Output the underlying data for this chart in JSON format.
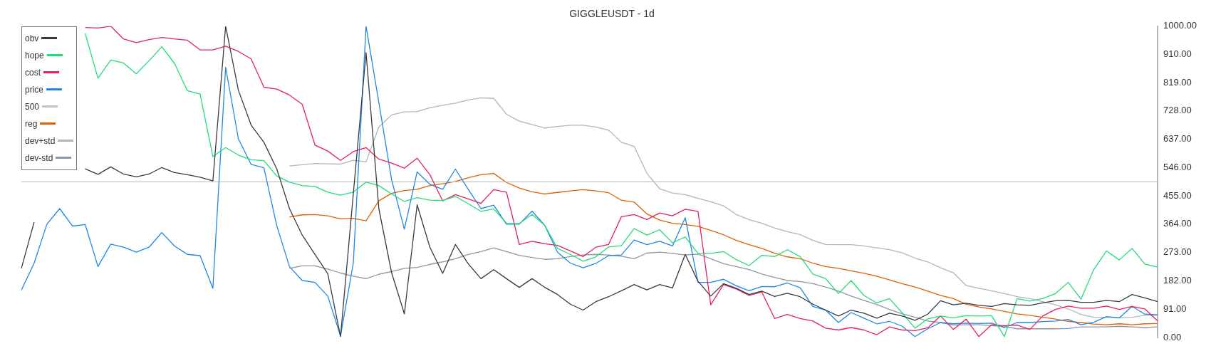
{
  "chart_data": {
    "type": "line",
    "title": "GIGGLEUSDT - 1d",
    "categories": [
      null,
      null,
      null,
      null,
      null,
      null,
      null,
      null,
      null,
      null,
      null,
      null,
      null,
      null,
      null,
      null,
      null,
      null,
      null,
      null,
      null,
      null,
      null,
      null,
      null,
      null,
      null,
      null,
      null,
      null,
      null,
      null,
      null,
      null,
      null,
      null,
      null,
      null,
      null,
      null,
      null,
      null,
      null,
      null,
      null,
      null,
      null,
      null,
      null,
      null,
      null,
      null,
      null,
      null,
      null,
      null,
      null,
      null,
      null,
      null,
      null,
      null,
      null,
      null,
      null,
      null,
      null,
      null,
      null,
      null,
      null,
      null,
      null,
      null,
      null,
      null,
      null,
      null,
      null,
      null,
      null,
      null,
      null,
      null,
      null,
      null,
      null,
      null,
      null,
      null
    ],
    "ylim": [
      0,
      1000
    ],
    "yticks": [
      {
        "value": 0,
        "label": "0.00"
      },
      {
        "value": 91,
        "label": "91.00"
      },
      {
        "value": 182,
        "label": "182.00"
      },
      {
        "value": 273,
        "label": "273.00"
      },
      {
        "value": 364,
        "label": "364.00"
      },
      {
        "value": 455,
        "label": "455.00"
      },
      {
        "value": 546,
        "label": "546.00"
      },
      {
        "value": 637,
        "label": "637.00"
      },
      {
        "value": 728,
        "label": "728.00"
      },
      {
        "value": 819,
        "label": "819.00"
      },
      {
        "value": 910,
        "label": "910.00"
      },
      {
        "value": 1000,
        "label": "1000.00"
      }
    ],
    "tick_labels": "y",
    "legend": "top left",
    "series": [
      {
        "name": "obv",
        "color": "#363a45",
        "values": [
          222,
          371,
          null,
          null,
          null,
          542,
          524,
          548,
          525,
          516,
          525,
          546,
          530,
          523,
          515,
          503,
          1000,
          794,
          682,
          627,
          542,
          414,
          329,
          267,
          205,
          3,
          461,
          915,
          414,
          208,
          76,
          426,
          290,
          206,
          299,
          237,
          189,
          218,
          189,
          161,
          189,
          161,
          138,
          107,
          88,
          115,
          131,
          150,
          170,
          153,
          170,
          159,
          267,
          181,
          133,
          173,
          158,
          138,
          149,
          132,
          142,
          131,
          107,
          88,
          69,
          88,
          78,
          62,
          78,
          69,
          55,
          75,
          118,
          105,
          110,
          103,
          100,
          109,
          105,
          103,
          111,
          118,
          119,
          113,
          113,
          119,
          115,
          138,
          127,
          115
        ]
      },
      {
        "name": "hope",
        "color": "#22dd77",
        "values": [
          null,
          null,
          null,
          null,
          null,
          977,
          833,
          891,
          882,
          847,
          889,
          934,
          880,
          793,
          782,
          581,
          610,
          586,
          571,
          568,
          519,
          499,
          488,
          485,
          467,
          457,
          467,
          499,
          488,
          461,
          437,
          449,
          441,
          440,
          453,
          430,
          405,
          413,
          367,
          366,
          395,
          360,
          286,
          267,
          245,
          259,
          291,
          295,
          350,
          329,
          346,
          304,
          323,
          270,
          270,
          276,
          250,
          231,
          264,
          260,
          282,
          260,
          204,
          189,
          141,
          183,
          135,
          111,
          125,
          79,
          30,
          60,
          69,
          63,
          70,
          69,
          70,
          3,
          125,
          117,
          125,
          141,
          177,
          123,
          218,
          278,
          249,
          286,
          236,
          226
        ]
      },
      {
        "name": "cost",
        "color": "#e91e63",
        "values": [
          null,
          null,
          null,
          null,
          null,
          996,
          994,
          1000,
          959,
          947,
          957,
          964,
          959,
          955,
          924,
          924,
          936,
          919,
          895,
          804,
          798,
          779,
          749,
          618,
          599,
          569,
          597,
          610,
          573,
          560,
          544,
          576,
          523,
          439,
          459,
          445,
          431,
          475,
          467,
          299,
          309,
          301,
          296,
          278,
          260,
          290,
          299,
          388,
          395,
          379,
          400,
          391,
          412,
          405,
          105,
          170,
          156,
          135,
          146,
          61,
          74,
          61,
          53,
          30,
          24,
          32,
          24,
          9,
          34,
          24,
          22,
          31,
          69,
          26,
          59,
          3,
          41,
          38,
          40,
          26,
          69,
          90,
          101,
          94,
          94,
          101,
          90,
          100,
          92,
          53
        ]
      },
      {
        "name": "price",
        "color": "#1e88e5",
        "values": [
          152,
          239,
          364,
          414,
          358,
          363,
          228,
          300,
          290,
          274,
          290,
          337,
          294,
          267,
          263,
          158,
          868,
          638,
          556,
          545,
          360,
          228,
          183,
          177,
          133,
          5,
          239,
          1000,
          755,
          507,
          348,
          532,
          492,
          476,
          541,
          476,
          414,
          425,
          364,
          364,
          406,
          360,
          274,
          239,
          224,
          238,
          263,
          265,
          313,
          298,
          309,
          294,
          385,
          177,
          177,
          187,
          166,
          150,
          164,
          163,
          175,
          160,
          100,
          88,
          48,
          80,
          62,
          44,
          52,
          36,
          3,
          28,
          48,
          44,
          46,
          45,
          46,
          32,
          48,
          48,
          51,
          53,
          58,
          41,
          49,
          67,
          63,
          100,
          75,
          73
        ]
      },
      {
        "name": "500",
        "color": "#c3c3c3",
        "values": [
          500,
          500,
          500,
          500,
          500,
          500,
          500,
          500,
          500,
          500,
          500,
          500,
          500,
          500,
          500,
          500,
          500,
          500,
          500,
          500,
          500,
          500,
          500,
          500,
          500,
          500,
          500,
          500,
          500,
          500,
          500,
          500,
          500,
          500,
          500,
          500,
          500,
          500,
          500,
          500,
          500,
          500,
          500,
          500,
          500,
          500,
          500,
          500,
          500,
          500,
          500,
          500,
          500,
          500,
          500,
          500,
          500,
          500,
          500,
          500,
          500,
          500,
          500,
          500,
          500,
          500,
          500,
          500,
          500,
          500,
          500,
          500,
          500,
          500,
          500,
          500,
          500,
          500,
          500,
          500,
          500,
          500,
          500,
          500,
          500,
          500,
          500,
          500,
          500,
          500
        ]
      },
      {
        "name": "reg",
        "color": "#e05f00",
        "values": [
          null,
          null,
          null,
          null,
          null,
          null,
          null,
          null,
          null,
          null,
          null,
          null,
          null,
          null,
          null,
          null,
          null,
          null,
          null,
          null,
          null,
          387,
          394,
          395,
          391,
          381,
          383,
          375,
          439,
          463,
          472,
          476,
          488,
          494,
          501,
          513,
          523,
          527,
          498,
          480,
          468,
          461,
          466,
          471,
          475,
          471,
          465,
          441,
          435,
          397,
          377,
          367,
          363,
          357,
          344,
          330,
          312,
          298,
          286,
          271,
          259,
          253,
          239,
          228,
          222,
          214,
          206,
          197,
          185,
          173,
          162,
          149,
          135,
          125,
          107,
          98,
          92,
          84,
          76,
          71,
          65,
          59,
          52,
          48,
          43,
          41,
          44,
          41,
          44,
          45
        ]
      },
      {
        "name": "dev+std",
        "color": "#aeb6be",
        "values": [
          null,
          null,
          null,
          null,
          null,
          null,
          null,
          null,
          null,
          null,
          null,
          null,
          null,
          null,
          null,
          null,
          null,
          null,
          null,
          null,
          null,
          551,
          555,
          559,
          558,
          557,
          569,
          564,
          676,
          715,
          725,
          726,
          738,
          746,
          753,
          763,
          770,
          768,
          717,
          695,
          684,
          673,
          678,
          682,
          682,
          676,
          666,
          627,
          614,
          527,
          478,
          464,
          459,
          447,
          436,
          423,
          395,
          379,
          367,
          352,
          340,
          331,
          312,
          299,
          298,
          298,
          294,
          288,
          282,
          272,
          255,
          243,
          224,
          208,
          167,
          158,
          150,
          141,
          131,
          125,
          115,
          105,
          92,
          74,
          65,
          65,
          63,
          65,
          71,
          71
        ]
      },
      {
        "name": "dev-std",
        "color": "#8c97a3",
        "values": [
          null,
          null,
          null,
          null,
          null,
          null,
          null,
          null,
          null,
          null,
          null,
          null,
          null,
          null,
          null,
          null,
          null,
          null,
          null,
          null,
          null,
          222,
          230,
          230,
          220,
          207,
          197,
          189,
          203,
          212,
          222,
          225,
          235,
          243,
          253,
          267,
          276,
          288,
          276,
          264,
          257,
          251,
          253,
          260,
          265,
          267,
          265,
          261,
          253,
          271,
          274,
          270,
          265,
          268,
          253,
          237,
          228,
          218,
          204,
          193,
          183,
          180,
          173,
          162,
          149,
          133,
          119,
          106,
          90,
          76,
          65,
          53,
          48,
          40,
          41,
          41,
          38,
          35,
          28,
          28,
          28,
          28,
          29,
          34,
          34,
          34,
          36,
          34,
          32,
          34
        ]
      }
    ]
  }
}
